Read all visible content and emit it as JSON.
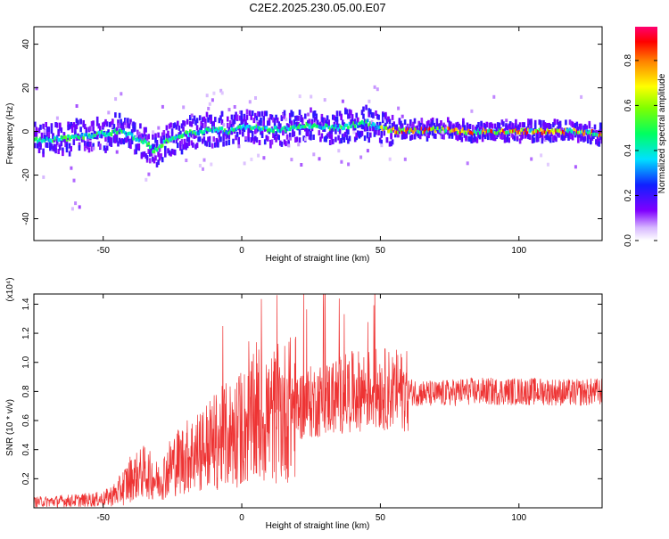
{
  "title": "C2E2.2025.230.05.00.E07",
  "chart_data": [
    {
      "type": "heatmap",
      "xlabel": "Height of straight line (km)",
      "ylabel": "Frequency (Hz)",
      "xlim": [
        -75,
        130
      ],
      "ylim": [
        -50,
        48
      ],
      "x_ticks": [
        "-50",
        "0",
        "50",
        "100"
      ],
      "y_ticks": [
        "40",
        "20",
        "0",
        "-20",
        "-40"
      ],
      "x_tick_values": [
        -50,
        0,
        50,
        100
      ],
      "y_tick_values": [
        40,
        20,
        0,
        -20,
        -40
      ],
      "colorbar": {
        "label": "Normalized spectral amplitude",
        "range": [
          0,
          0.95
        ],
        "ticks": [
          "0.0",
          "0.2",
          "0.4",
          "0.6",
          "0.8"
        ],
        "tick_values": [
          0,
          0.2,
          0.4,
          0.6,
          0.8
        ]
      },
      "ridge": {
        "x": [
          -75,
          -65,
          -55,
          -45,
          -40,
          -35,
          -32,
          -28,
          -25,
          -20,
          -15,
          -10,
          -5,
          0,
          5,
          10,
          15,
          20,
          25,
          30,
          35,
          40,
          45,
          50,
          60,
          70,
          80,
          90,
          100,
          110,
          120,
          130
        ],
        "y": [
          -4,
          -3,
          -2,
          0,
          -2,
          -5,
          -9,
          -5,
          -3,
          -1,
          0,
          1,
          0,
          2,
          2,
          1,
          1,
          2,
          3,
          2,
          2,
          3,
          4,
          1,
          0,
          1,
          0,
          0,
          0,
          0,
          0,
          -1
        ]
      }
    },
    {
      "type": "line",
      "xlabel": "Height of straight line (km)",
      "ylabel": "SNR (10 * v/v)",
      "yscale_label": "(x10⁴)",
      "xlim": [
        -75,
        130
      ],
      "ylim": [
        0,
        1.47
      ],
      "x_ticks": [
        "-50",
        "0",
        "50",
        "100"
      ],
      "y_ticks": [
        "0.2",
        "0.4",
        "0.6",
        "0.8",
        "1.0",
        "1.2",
        "1.4"
      ],
      "x_tick_values": [
        -50,
        0,
        50,
        100
      ],
      "y_tick_values": [
        0.2,
        0.4,
        0.6,
        0.8,
        1.0,
        1.2,
        1.4
      ],
      "trend": {
        "x": [
          -75,
          -60,
          -50,
          -45,
          -40,
          -35,
          -30,
          -25,
          -20,
          -10,
          0,
          10,
          20,
          30,
          40,
          50,
          60,
          70,
          80,
          90,
          100,
          110,
          120,
          130
        ],
        "y": [
          0.04,
          0.05,
          0.06,
          0.1,
          0.2,
          0.25,
          0.18,
          0.3,
          0.35,
          0.45,
          0.55,
          0.62,
          0.7,
          0.75,
          0.8,
          0.82,
          0.8,
          0.78,
          0.8,
          0.8,
          0.8,
          0.8,
          0.79,
          0.8
        ]
      },
      "series_color": "#ee3333"
    }
  ]
}
